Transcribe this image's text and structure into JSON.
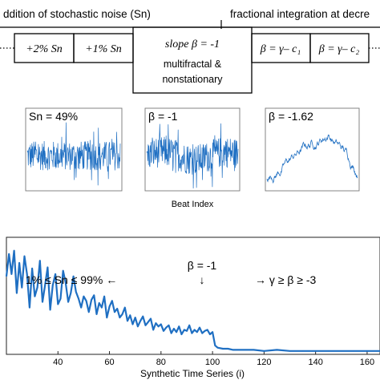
{
  "header": {
    "left_text": "ddition of stochastic noise (Sn)",
    "right_text": "fractional integration at decre"
  },
  "process_boxes": [
    {
      "label": "+2% Sn"
    },
    {
      "label": "+1% Sn"
    },
    {
      "label": "slope β = -1",
      "sublabel_1": "multifractal &",
      "sublabel_2": "nonstationary"
    },
    {
      "label": "β = γ– c₁"
    },
    {
      "label": "β = γ– c₂"
    }
  ],
  "example_panels": [
    {
      "label": "Sn = 49%"
    },
    {
      "label": "β = -1"
    },
    {
      "label": "β = -1.62"
    }
  ],
  "examples_xlabel": "Beat Index",
  "chart_data": {
    "type": "line",
    "xlabel": "Synthetic Time Series (i)",
    "ylabel": "",
    "xlim": [
      20,
      165
    ],
    "ylim": [
      0,
      1.05
    ],
    "xticks": [
      40,
      60,
      80,
      100,
      120,
      140,
      160
    ],
    "xtick_labels": [
      "40",
      "60",
      "80",
      "100",
      "120",
      "140",
      "160"
    ],
    "grid": false,
    "color": "#1f6fc2",
    "annotations": [
      {
        "text": "1% ≤ Sn ≤ 99% ←"
      },
      {
        "text": "β = -1"
      },
      {
        "text": "↓"
      },
      {
        "text": "→ γ ≥ β ≥ -3"
      }
    ],
    "x": [
      20,
      21,
      22,
      23,
      24,
      25,
      26,
      27,
      28,
      29,
      30,
      31,
      32,
      33,
      34,
      35,
      36,
      37,
      38,
      39,
      40,
      41,
      42,
      43,
      44,
      45,
      46,
      47,
      48,
      49,
      50,
      51,
      52,
      53,
      54,
      55,
      56,
      57,
      58,
      59,
      60,
      61,
      62,
      63,
      64,
      65,
      66,
      67,
      68,
      69,
      70,
      71,
      72,
      73,
      74,
      75,
      76,
      77,
      78,
      79,
      80,
      81,
      82,
      83,
      84,
      85,
      86,
      87,
      88,
      89,
      90,
      91,
      92,
      93,
      94,
      95,
      96,
      97,
      98,
      99,
      100,
      101,
      102,
      104,
      106,
      108,
      110,
      113,
      116,
      120,
      125,
      130,
      135,
      140,
      145,
      150,
      155,
      160,
      165
    ],
    "values": [
      0.7,
      0.9,
      0.72,
      0.93,
      0.55,
      0.82,
      0.6,
      0.88,
      0.72,
      0.42,
      0.77,
      0.52,
      0.6,
      0.84,
      0.47,
      0.62,
      0.78,
      0.4,
      0.62,
      0.72,
      0.45,
      0.5,
      0.75,
      0.64,
      0.47,
      0.55,
      0.7,
      0.56,
      0.5,
      0.42,
      0.52,
      0.48,
      0.38,
      0.49,
      0.53,
      0.36,
      0.46,
      0.42,
      0.52,
      0.33,
      0.43,
      0.48,
      0.38,
      0.41,
      0.33,
      0.36,
      0.42,
      0.3,
      0.35,
      0.27,
      0.33,
      0.25,
      0.3,
      0.34,
      0.26,
      0.29,
      0.32,
      0.22,
      0.28,
      0.25,
      0.27,
      0.21,
      0.24,
      0.26,
      0.19,
      0.23,
      0.2,
      0.25,
      0.18,
      0.22,
      0.21,
      0.26,
      0.19,
      0.22,
      0.2,
      0.24,
      0.19,
      0.21,
      0.22,
      0.18,
      0.2,
      0.08,
      0.06,
      0.05,
      0.05,
      0.04,
      0.04,
      0.04,
      0.04,
      0.03,
      0.04,
      0.03,
      0.03,
      0.03,
      0.03,
      0.03,
      0.03,
      0.03,
      0.03
    ]
  }
}
